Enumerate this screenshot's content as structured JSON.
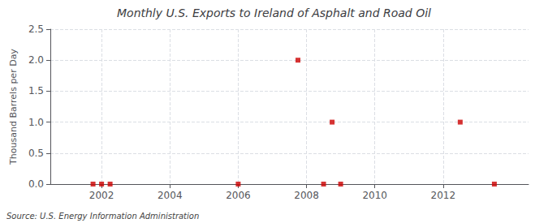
{
  "chart_data": {
    "type": "scatter",
    "title": "Monthly U.S. Exports to Ireland of Asphalt and Road Oil",
    "y_label": "Thousand Barrels per Day",
    "source": "Source: U.S. Energy Information Administration",
    "x": [
      2001.75,
      2002.0,
      2002.25,
      2006.0,
      2007.75,
      2008.5,
      2008.75,
      2009.0,
      2012.5,
      2013.5
    ],
    "values": [
      0.0,
      0.0,
      0.0,
      0.0,
      2.0,
      0.0,
      1.0,
      0.0,
      1.0,
      0.0
    ],
    "color": "#cc0000",
    "marker": "square",
    "xlim": [
      2000.5,
      2014.5
    ],
    "xticks": [
      2002,
      2004,
      2006,
      2008,
      2010,
      2012
    ],
    "ylim": [
      0.0,
      2.5
    ],
    "yticks": [
      {
        "value": 0.0,
        "label": "0.0"
      },
      0.5,
      {
        "value": 1.0,
        "label": "1.0"
      },
      1.5,
      {
        "value": 2.0,
        "label": "2.0"
      },
      2.5
    ],
    "grid": true
  }
}
